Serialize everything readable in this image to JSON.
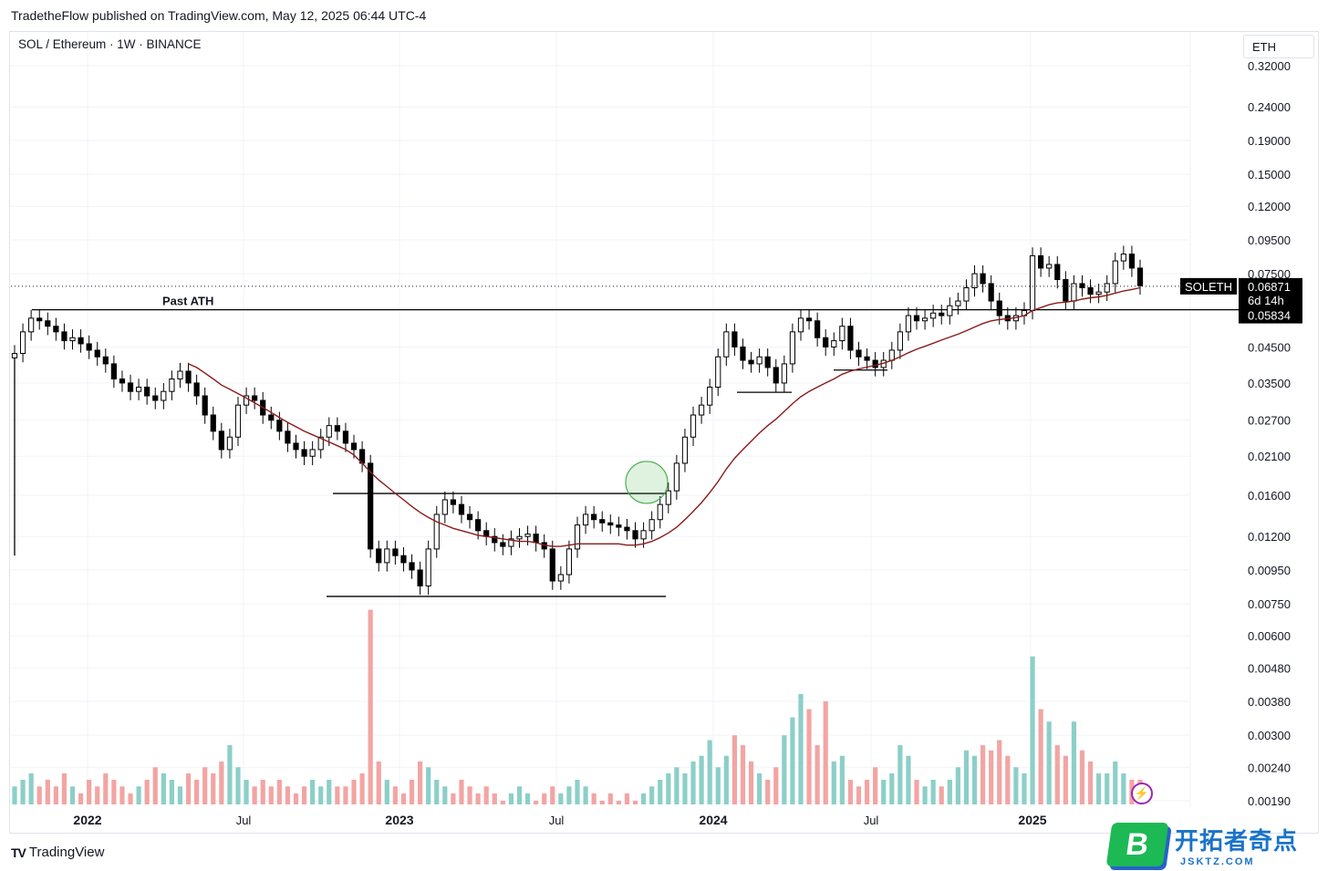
{
  "header": {
    "publisher_line": "TradetheFlow published on TradingView.com, May 12, 2025 06:44 UTC-4"
  },
  "legend": {
    "symbol_line": "SOL / Ethereum · 1W · BINANCE"
  },
  "price_scale": {
    "currency": "ETH"
  },
  "footer": {
    "brand": "TradingView",
    "brand_icon": "tv-logo-icon"
  },
  "watermark": {
    "badge": "B",
    "title": "开拓者奇点",
    "url": "JSKTZ.COM"
  },
  "colors": {
    "up": "#26a69a",
    "down": "#ef5350",
    "candle": "#000000",
    "ma": "#8b1a1a",
    "vol_up": "#8ccfc8",
    "vol_down": "#f2a5a3"
  },
  "chart_data": {
    "type": "candlestick",
    "scale": "log",
    "symbol": "SOLETH",
    "y_ticks": [
      "0.32000",
      "0.24000",
      "0.19000",
      "0.15000",
      "0.12000",
      "0.09500",
      "0.07500",
      "0.04500",
      "0.03500",
      "0.02700",
      "0.02100",
      "0.01600",
      "0.01200",
      "0.00950",
      "0.00750",
      "0.00600",
      "0.00480",
      "0.00380",
      "0.00300",
      "0.00240",
      "0.00190"
    ],
    "x_ticks": [
      "2022",
      "Jul",
      "2023",
      "Jul",
      "2024",
      "Jul",
      "2025"
    ],
    "last_price": {
      "label": "SOLETH",
      "value": "0.06871",
      "countdown": "6d 14h"
    },
    "level_label": "0.05834",
    "annotations": [
      {
        "text": "Past ATH",
        "type": "horizontal_line",
        "value": 0.05834
      },
      {
        "type": "horizontal_line",
        "value": 0.0162
      },
      {
        "type": "horizontal_line",
        "value": 0.0079
      },
      {
        "type": "horizontal_line",
        "value": 0.0328
      },
      {
        "type": "horizontal_line",
        "value": 0.0383
      },
      {
        "type": "circle",
        "value": 0.0175
      }
    ],
    "close_series": [
      0.043,
      0.05,
      0.055,
      0.054,
      0.052,
      0.05,
      0.047,
      0.048,
      0.046,
      0.044,
      0.042,
      0.04,
      0.036,
      0.035,
      0.033,
      0.034,
      0.032,
      0.031,
      0.033,
      0.036,
      0.038,
      0.035,
      0.032,
      0.028,
      0.025,
      0.022,
      0.024,
      0.03,
      0.032,
      0.031,
      0.028,
      0.027,
      0.025,
      0.023,
      0.022,
      0.021,
      0.022,
      0.024,
      0.026,
      0.025,
      0.023,
      0.022,
      0.02,
      0.011,
      0.01,
      0.011,
      0.0105,
      0.01,
      0.0095,
      0.0085,
      0.011,
      0.014,
      0.0155,
      0.015,
      0.014,
      0.0135,
      0.0125,
      0.012,
      0.0115,
      0.0112,
      0.0118,
      0.012,
      0.0122,
      0.0115,
      0.011,
      0.0088,
      0.0092,
      0.011,
      0.013,
      0.014,
      0.0135,
      0.0132,
      0.013,
      0.0128,
      0.0125,
      0.0118,
      0.0125,
      0.0135,
      0.015,
      0.0165,
      0.02,
      0.024,
      0.028,
      0.03,
      0.034,
      0.042,
      0.05,
      0.045,
      0.041,
      0.04,
      0.042,
      0.039,
      0.035,
      0.04,
      0.05,
      0.055,
      0.054,
      0.048,
      0.045,
      0.047,
      0.052,
      0.044,
      0.042,
      0.041,
      0.039,
      0.041,
      0.044,
      0.05,
      0.056,
      0.054,
      0.055,
      0.057,
      0.056,
      0.06,
      0.062,
      0.068,
      0.075,
      0.07,
      0.062,
      0.056,
      0.054,
      0.056,
      0.058,
      0.085,
      0.078,
      0.08,
      0.072,
      0.062,
      0.07,
      0.068,
      0.065,
      0.066,
      0.07,
      0.082,
      0.086,
      0.078,
      0.069
    ],
    "ma_series": [
      null,
      null,
      null,
      null,
      null,
      null,
      null,
      null,
      null,
      null,
      null,
      null,
      null,
      null,
      null,
      null,
      null,
      null,
      null,
      null,
      null,
      0.04,
      0.039,
      0.0375,
      0.036,
      0.0345,
      0.0335,
      0.0325,
      0.0315,
      0.0305,
      0.0295,
      0.0285,
      0.0275,
      0.0266,
      0.0258,
      0.025,
      0.0244,
      0.0238,
      0.0232,
      0.0226,
      0.022,
      0.0212,
      0.02,
      0.0188,
      0.0178,
      0.017,
      0.0162,
      0.0155,
      0.0148,
      0.0142,
      0.0137,
      0.0133,
      0.013,
      0.0127,
      0.0125,
      0.0123,
      0.0121,
      0.012,
      0.0119,
      0.0118,
      0.0117,
      0.0116,
      0.0116,
      0.0115,
      0.0113,
      0.0112,
      0.0112,
      0.0113,
      0.0114,
      0.0114,
      0.0114,
      0.0114,
      0.0114,
      0.0114,
      0.0113,
      0.0113,
      0.0114,
      0.0116,
      0.0119,
      0.0123,
      0.0128,
      0.0135,
      0.0143,
      0.0152,
      0.0163,
      0.0176,
      0.0192,
      0.0207,
      0.022,
      0.0233,
      0.0247,
      0.026,
      0.0272,
      0.0287,
      0.0303,
      0.0318,
      0.033,
      0.034,
      0.035,
      0.036,
      0.0372,
      0.038,
      0.0386,
      0.0391,
      0.0396,
      0.0402,
      0.041,
      0.042,
      0.0432,
      0.0443,
      0.0452,
      0.0462,
      0.0472,
      0.0482,
      0.0492,
      0.0504,
      0.0517,
      0.053,
      0.054,
      0.0545,
      0.0548,
      0.0552,
      0.056,
      0.058,
      0.0592,
      0.0604,
      0.0612,
      0.0615,
      0.062,
      0.0628,
      0.0634,
      0.0638,
      0.0645,
      0.0655,
      0.0665,
      0.0672,
      0.068
    ],
    "volume_series": [
      0.0021,
      0.0022,
      0.0023,
      0.0021,
      0.0022,
      0.0021,
      0.0023,
      0.0021,
      0.002,
      0.0022,
      0.0021,
      0.0023,
      0.0022,
      0.0021,
      0.002,
      0.0021,
      0.0022,
      0.0024,
      0.0023,
      0.0022,
      0.0021,
      0.0023,
      0.0022,
      0.0024,
      0.0023,
      0.0025,
      0.0028,
      0.0024,
      0.0022,
      0.0021,
      0.0022,
      0.0021,
      0.0022,
      0.0021,
      0.002,
      0.0021,
      0.0022,
      0.0021,
      0.0022,
      0.0021,
      0.0021,
      0.0022,
      0.0023,
      0.0072,
      0.0025,
      0.0022,
      0.0021,
      0.002,
      0.0022,
      0.0025,
      0.0024,
      0.0022,
      0.0021,
      0.002,
      0.0022,
      0.0021,
      0.002,
      0.0021,
      0.002,
      0.0019,
      0.002,
      0.0021,
      0.002,
      0.0019,
      0.002,
      0.0021,
      0.002,
      0.0021,
      0.0022,
      0.0021,
      0.002,
      0.0019,
      0.002,
      0.0019,
      0.002,
      0.0019,
      0.002,
      0.0021,
      0.0022,
      0.0023,
      0.0024,
      0.0023,
      0.0025,
      0.0026,
      0.0029,
      0.0024,
      0.0026,
      0.003,
      0.0028,
      0.0025,
      0.0023,
      0.0022,
      0.0024,
      0.003,
      0.0034,
      0.004,
      0.0036,
      0.0028,
      0.0038,
      0.0025,
      0.0026,
      0.0022,
      0.0021,
      0.0022,
      0.0024,
      0.0022,
      0.0023,
      0.0028,
      0.0026,
      0.0022,
      0.0021,
      0.0022,
      0.0021,
      0.0022,
      0.0024,
      0.0027,
      0.0026,
      0.0028,
      0.0027,
      0.0029,
      0.0026,
      0.0024,
      0.0023,
      0.0052,
      0.0036,
      0.0033,
      0.0028,
      0.0026,
      0.0033,
      0.0027,
      0.0025,
      0.0023,
      0.0023,
      0.0025,
      0.0023,
      0.0022,
      0.0022
    ]
  }
}
